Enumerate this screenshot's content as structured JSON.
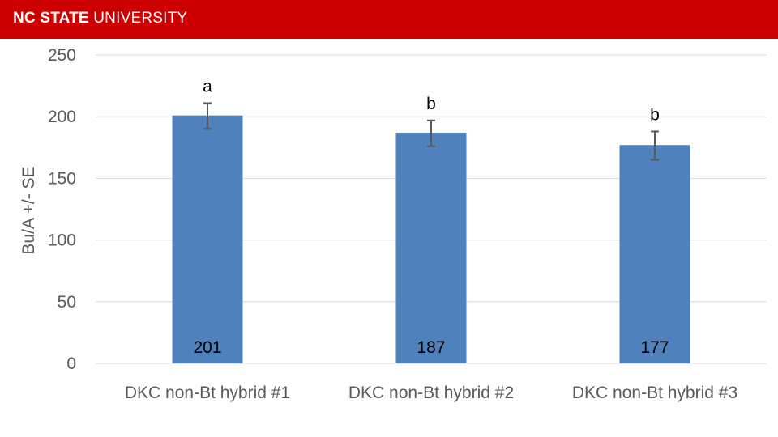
{
  "header": {
    "brand_bold": "NC STATE",
    "brand_rest": " UNIVERSITY",
    "color": "#cc0000"
  },
  "chart_data": {
    "type": "bar",
    "categories": [
      "DKC non-Bt hybrid #1",
      "DKC non-Bt hybrid #2",
      "DKC non-Bt hybrid #3"
    ],
    "values": [
      201,
      187,
      177
    ],
    "data_labels": [
      "201",
      "187",
      "177"
    ],
    "error_high": [
      211,
      197,
      188
    ],
    "error_low": [
      190,
      176,
      165
    ],
    "significance_letters": [
      "a",
      "b",
      "b"
    ],
    "ylabel": "Bu/A +/- SE",
    "ylim": [
      0,
      250
    ],
    "yticks": [
      0,
      50,
      100,
      150,
      200,
      250
    ],
    "grid": true,
    "bar_color": "#4f81bd"
  }
}
